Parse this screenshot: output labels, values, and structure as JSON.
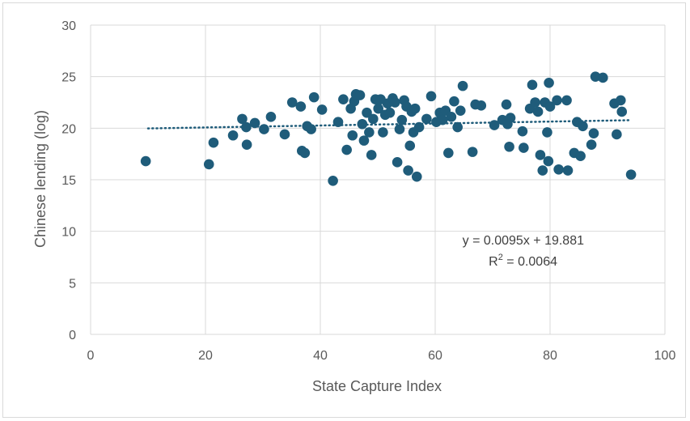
{
  "chart_data": {
    "type": "scatter",
    "xlabel": "State Capture Index",
    "ylabel": "Chinese lending (log)",
    "xlim": [
      0,
      100
    ],
    "ylim": [
      0,
      30
    ],
    "xticks": [
      "0",
      "20",
      "40",
      "60",
      "80",
      "100"
    ],
    "yticks": [
      "0",
      "5",
      "10",
      "15",
      "20",
      "25",
      "30"
    ],
    "grid": true,
    "marker_color": "#1f5c7a",
    "trendline": {
      "slope": 0.0095,
      "intercept": 19.881,
      "x_range": [
        10,
        94
      ],
      "style": "dotted",
      "equation": "y = 0.0095x + 19.881",
      "r2_label": "R",
      "r2_exponent": "2",
      "r2_value": " = 0.0064"
    },
    "points": [
      {
        "x": 9.6,
        "y": 16.8
      },
      {
        "x": 20.6,
        "y": 16.5
      },
      {
        "x": 21.4,
        "y": 18.6
      },
      {
        "x": 24.8,
        "y": 19.3
      },
      {
        "x": 26.4,
        "y": 20.9
      },
      {
        "x": 27.1,
        "y": 20.1
      },
      {
        "x": 27.2,
        "y": 18.4
      },
      {
        "x": 28.6,
        "y": 20.5
      },
      {
        "x": 30.2,
        "y": 19.9
      },
      {
        "x": 31.4,
        "y": 21.1
      },
      {
        "x": 33.8,
        "y": 19.4
      },
      {
        "x": 35.1,
        "y": 22.5
      },
      {
        "x": 36.6,
        "y": 22.1
      },
      {
        "x": 36.8,
        "y": 17.8
      },
      {
        "x": 37.3,
        "y": 17.6
      },
      {
        "x": 37.7,
        "y": 20.2
      },
      {
        "x": 38.4,
        "y": 19.9
      },
      {
        "x": 38.9,
        "y": 23.0
      },
      {
        "x": 40.3,
        "y": 21.8
      },
      {
        "x": 42.2,
        "y": 14.9
      },
      {
        "x": 43.1,
        "y": 20.6
      },
      {
        "x": 44.0,
        "y": 22.8
      },
      {
        "x": 44.6,
        "y": 17.9
      },
      {
        "x": 45.3,
        "y": 21.9
      },
      {
        "x": 45.6,
        "y": 19.3
      },
      {
        "x": 45.9,
        "y": 22.6
      },
      {
        "x": 46.2,
        "y": 23.3
      },
      {
        "x": 46.9,
        "y": 23.2
      },
      {
        "x": 47.3,
        "y": 20.4
      },
      {
        "x": 47.6,
        "y": 18.8
      },
      {
        "x": 48.1,
        "y": 21.5
      },
      {
        "x": 48.5,
        "y": 19.6
      },
      {
        "x": 48.9,
        "y": 17.4
      },
      {
        "x": 49.2,
        "y": 20.9
      },
      {
        "x": 49.6,
        "y": 22.8
      },
      {
        "x": 50.1,
        "y": 21.9
      },
      {
        "x": 50.5,
        "y": 22.8
      },
      {
        "x": 50.9,
        "y": 19.6
      },
      {
        "x": 51.3,
        "y": 21.3
      },
      {
        "x": 51.7,
        "y": 22.4
      },
      {
        "x": 52.1,
        "y": 21.5
      },
      {
        "x": 52.6,
        "y": 22.9
      },
      {
        "x": 53.0,
        "y": 22.5
      },
      {
        "x": 53.4,
        "y": 16.7
      },
      {
        "x": 53.8,
        "y": 19.9
      },
      {
        "x": 54.2,
        "y": 20.8
      },
      {
        "x": 54.6,
        "y": 22.7
      },
      {
        "x": 55.0,
        "y": 22.1
      },
      {
        "x": 55.3,
        "y": 15.9
      },
      {
        "x": 55.6,
        "y": 18.3
      },
      {
        "x": 55.9,
        "y": 21.6
      },
      {
        "x": 56.2,
        "y": 19.6
      },
      {
        "x": 56.5,
        "y": 21.9
      },
      {
        "x": 56.8,
        "y": 15.3
      },
      {
        "x": 57.2,
        "y": 20.1
      },
      {
        "x": 58.5,
        "y": 20.9
      },
      {
        "x": 59.3,
        "y": 23.1
      },
      {
        "x": 60.2,
        "y": 20.6
      },
      {
        "x": 60.8,
        "y": 21.5
      },
      {
        "x": 61.3,
        "y": 20.8
      },
      {
        "x": 61.8,
        "y": 21.7
      },
      {
        "x": 62.3,
        "y": 17.6
      },
      {
        "x": 62.8,
        "y": 21.1
      },
      {
        "x": 63.3,
        "y": 22.6
      },
      {
        "x": 63.9,
        "y": 20.1
      },
      {
        "x": 64.4,
        "y": 21.7
      },
      {
        "x": 64.8,
        "y": 24.1
      },
      {
        "x": 66.5,
        "y": 17.7
      },
      {
        "x": 67.0,
        "y": 22.3
      },
      {
        "x": 68.0,
        "y": 22.2
      },
      {
        "x": 70.3,
        "y": 20.3
      },
      {
        "x": 71.7,
        "y": 20.8
      },
      {
        "x": 72.4,
        "y": 22.3
      },
      {
        "x": 72.6,
        "y": 20.4
      },
      {
        "x": 72.9,
        "y": 18.2
      },
      {
        "x": 73.1,
        "y": 21.0
      },
      {
        "x": 75.2,
        "y": 19.7
      },
      {
        "x": 75.4,
        "y": 18.1
      },
      {
        "x": 76.5,
        "y": 21.9
      },
      {
        "x": 76.9,
        "y": 24.2
      },
      {
        "x": 77.4,
        "y": 22.5
      },
      {
        "x": 77.9,
        "y": 21.6
      },
      {
        "x": 78.3,
        "y": 17.4
      },
      {
        "x": 78.7,
        "y": 15.9
      },
      {
        "x": 79.1,
        "y": 22.5
      },
      {
        "x": 79.5,
        "y": 19.6
      },
      {
        "x": 79.7,
        "y": 16.8
      },
      {
        "x": 79.8,
        "y": 24.4
      },
      {
        "x": 80.0,
        "y": 22.1
      },
      {
        "x": 81.2,
        "y": 22.7
      },
      {
        "x": 81.5,
        "y": 16.0
      },
      {
        "x": 82.9,
        "y": 22.7
      },
      {
        "x": 83.1,
        "y": 15.9
      },
      {
        "x": 84.2,
        "y": 17.6
      },
      {
        "x": 84.7,
        "y": 20.6
      },
      {
        "x": 85.3,
        "y": 17.3
      },
      {
        "x": 85.7,
        "y": 20.2
      },
      {
        "x": 87.2,
        "y": 18.4
      },
      {
        "x": 87.6,
        "y": 19.5
      },
      {
        "x": 87.9,
        "y": 25.0
      },
      {
        "x": 89.2,
        "y": 24.9
      },
      {
        "x": 91.2,
        "y": 22.4
      },
      {
        "x": 91.6,
        "y": 19.4
      },
      {
        "x": 92.3,
        "y": 22.7
      },
      {
        "x": 92.5,
        "y": 21.6
      },
      {
        "x": 94.1,
        "y": 15.5
      }
    ]
  }
}
